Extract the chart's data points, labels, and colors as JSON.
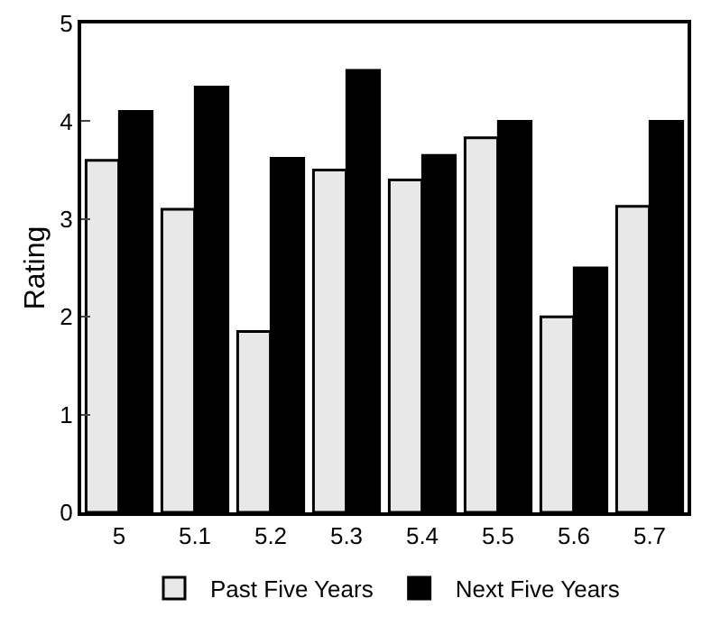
{
  "chart_data": {
    "type": "bar",
    "ylabel": "Rating",
    "categories": [
      "5",
      "5.1",
      "5.2",
      "5.3",
      "5.4",
      "5.5",
      "5.6",
      "5.7"
    ],
    "series": [
      {
        "name": "Past Five Years",
        "color": "#e8e8e8",
        "values": [
          3.6,
          3.1,
          1.85,
          3.5,
          3.4,
          3.83,
          2.0,
          3.13
        ]
      },
      {
        "name": "Next Five Years",
        "color": "#000000",
        "values": [
          4.1,
          4.35,
          3.62,
          4.52,
          3.65,
          4.0,
          2.5,
          4.0
        ]
      }
    ],
    "ylim": [
      0,
      5
    ],
    "yticks": [
      0,
      1,
      2,
      3,
      4,
      5
    ],
    "grid": false,
    "legend": "bottom"
  }
}
